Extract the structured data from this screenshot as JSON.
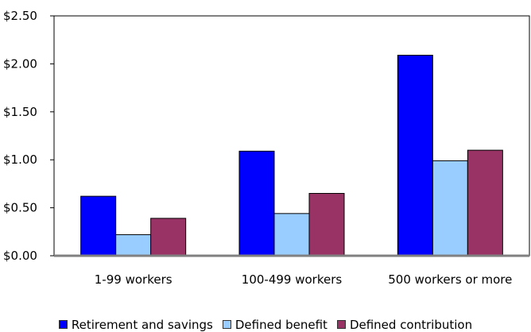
{
  "chart_data": {
    "type": "bar",
    "categories": [
      "1-99 workers",
      "100-499 workers",
      "500 workers or more"
    ],
    "series": [
      {
        "name": "Retirement and savings",
        "values": [
          0.62,
          1.09,
          2.09
        ],
        "color": "#0000ff"
      },
      {
        "name": "Defined benefit",
        "values": [
          0.22,
          0.44,
          0.99
        ],
        "color": "#99ccff"
      },
      {
        "name": "Defined contribution",
        "values": [
          0.39,
          0.65,
          1.1
        ],
        "color": "#993366"
      }
    ],
    "y_ticks": [
      "$0.00",
      "$0.50",
      "$1.00",
      "$1.50",
      "$2.00",
      "$2.50"
    ],
    "y_tick_values": [
      0,
      0.5,
      1.0,
      1.5,
      2.0,
      2.5
    ],
    "ylim": [
      0,
      2.5
    ],
    "grid": false,
    "legend_position": "bottom"
  }
}
